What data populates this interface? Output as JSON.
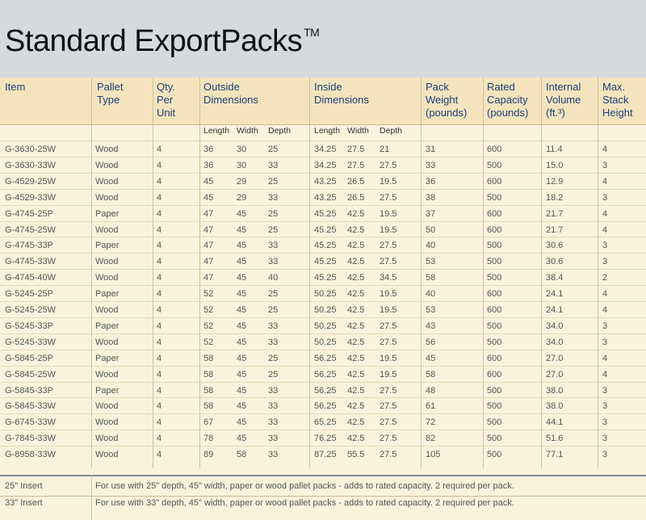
{
  "title": "Standard ExportPacks",
  "trademark": "TM",
  "headers": {
    "item": "Item",
    "pallet_type": "Pallet\nType",
    "qty": "Qty.\nPer\nUnit",
    "outside": "Outside\nDimensions",
    "inside": "Inside\nDimensions",
    "pack_weight": "Pack\nWeight\n(pounds)",
    "rated_capacity": "Rated\nCapacity\n(pounds)",
    "internal_volume": "Internal\nVolume\n(ft.³)",
    "max_stack": "Max.\nStack\nHeight"
  },
  "subheaders": {
    "o_length": "Length",
    "o_width": "Width",
    "o_depth": "Depth",
    "i_length": "Length",
    "i_width": "Width",
    "i_depth": "Depth"
  },
  "rows": [
    [
      "G-3630-25W",
      "Wood",
      "4",
      "36",
      "30",
      "25",
      "34.25",
      "27.5",
      "21",
      "31",
      "600",
      "11.4",
      "4"
    ],
    [
      "G-3630-33W",
      "Wood",
      "4",
      "36",
      "30",
      "33",
      "34.25",
      "27.5",
      "27.5",
      "33",
      "500",
      "15.0",
      "3"
    ],
    [
      "G-4529-25W",
      "Wood",
      "4",
      "45",
      "29",
      "25",
      "43.25",
      "26.5",
      "19.5",
      "36",
      "600",
      "12.9",
      "4"
    ],
    [
      "G-4529-33W",
      "Wood",
      "4",
      "45",
      "29",
      "33",
      "43.25",
      "26.5",
      "27.5",
      "38",
      "500",
      "18.2",
      "3"
    ],
    [
      "G-4745-25P",
      "Paper",
      "4",
      "47",
      "45",
      "25",
      "45.25",
      "42.5",
      "19.5",
      "37",
      "600",
      "21.7",
      "4"
    ],
    [
      "G-4745-25W",
      "Wood",
      "4",
      "47",
      "45",
      "25",
      "45.25",
      "42.5",
      "19.5",
      "50",
      "600",
      "21.7",
      "4"
    ],
    [
      "G-4745-33P",
      "Paper",
      "4",
      "47",
      "45",
      "33",
      "45.25",
      "42.5",
      "27.5",
      "40",
      "500",
      "30.6",
      "3"
    ],
    [
      "G-4745-33W",
      "Wood",
      "4",
      "47",
      "45",
      "33",
      "45.25",
      "42.5",
      "27.5",
      "53",
      "500",
      "30.6",
      "3"
    ],
    [
      "G-4745-40W",
      "Wood",
      "4",
      "47",
      "45",
      "40",
      "45.25",
      "42.5",
      "34.5",
      "58",
      "500",
      "38.4",
      "2"
    ],
    [
      "G-5245-25P",
      "Paper",
      "4",
      "52",
      "45",
      "25",
      "50.25",
      "42.5",
      "19.5",
      "40",
      "600",
      "24.1",
      "4"
    ],
    [
      "G-5245-25W",
      "Wood",
      "4",
      "52",
      "45",
      "25",
      "50.25",
      "42.5",
      "19.5",
      "53",
      "600",
      "24.1",
      "4"
    ],
    [
      "G-5245-33P",
      "Paper",
      "4",
      "52",
      "45",
      "33",
      "50.25",
      "42.5",
      "27.5",
      "43",
      "500",
      "34.0",
      "3"
    ],
    [
      "G-5245-33W",
      "Wood",
      "4",
      "52",
      "45",
      "33",
      "50.25",
      "42.5",
      "27.5",
      "56",
      "500",
      "34.0",
      "3"
    ],
    [
      "G-5845-25P",
      "Paper",
      "4",
      "58",
      "45",
      "25",
      "56.25",
      "42.5",
      "19.5",
      "45",
      "600",
      "27.0",
      "4"
    ],
    [
      "G-5845-25W",
      "Wood",
      "4",
      "58",
      "45",
      "25",
      "56.25",
      "42.5",
      "19.5",
      "58",
      "600",
      "27.0",
      "4"
    ],
    [
      "G-5845-33P",
      "Paper",
      "4",
      "58",
      "45",
      "33",
      "56.25",
      "42.5",
      "27.5",
      "48",
      "500",
      "38.0",
      "3"
    ],
    [
      "G-5845-33W",
      "Wood",
      "4",
      "58",
      "45",
      "33",
      "56.25",
      "42.5",
      "27.5",
      "61",
      "500",
      "38.0",
      "3"
    ],
    [
      "G-6745-33W",
      "Wood",
      "4",
      "67",
      "45",
      "33",
      "65.25",
      "42.5",
      "27.5",
      "72",
      "500",
      "44.1",
      "3"
    ],
    [
      "G-7845-33W",
      "Wood",
      "4",
      "78",
      "45",
      "33",
      "76.25",
      "42.5",
      "27.5",
      "82",
      "500",
      "51.6",
      "3"
    ],
    [
      "G-8958-33W",
      "Wood",
      "4",
      "89",
      "58",
      "33",
      "87.25",
      "55.5",
      "27.5",
      "105",
      "500",
      "77.1",
      "3"
    ]
  ],
  "inserts": [
    {
      "item": "25\" Insert",
      "desc": "For use with 25\" depth, 45\" width, paper or wood pallet packs - adds to rated capacity. 2 required per pack."
    },
    {
      "item": "33\" Insert",
      "desc": "For use with 33\" depth, 45\" width, paper or wood pallet packs - adds to rated capacity. 2 required per pack."
    }
  ],
  "colors": {
    "title_bg": "#d6dadc",
    "header_bg": "#f4e4bd",
    "table_bg": "#fbf2dd",
    "header_text": "#1a3f7a"
  }
}
